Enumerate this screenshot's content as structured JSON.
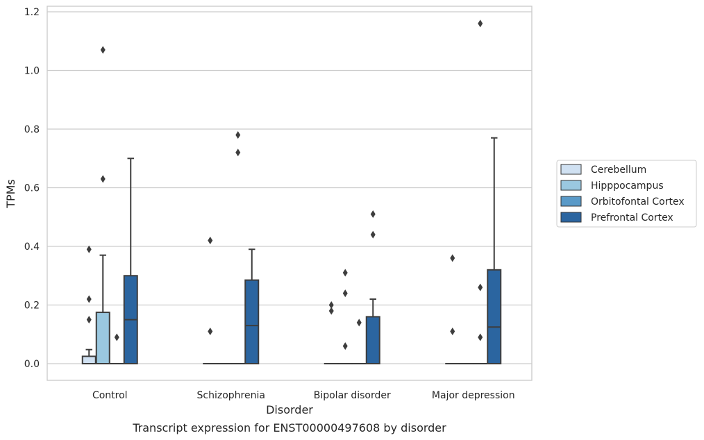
{
  "chart_data": {
    "type": "box",
    "title": "",
    "caption": "Transcript expression for ENST00000497608 by disorder",
    "xlabel": "Disorder",
    "ylabel": "TPMs",
    "ylim": [
      -0.057,
      1.22
    ],
    "yticks": [
      0.0,
      0.2,
      0.4,
      0.6,
      0.8,
      1.0,
      1.2
    ],
    "ytick_labels": [
      "0.0",
      "0.2",
      "0.4",
      "0.6",
      "0.8",
      "1.0",
      "1.2"
    ],
    "grid": "horizontal",
    "legend_position": "outside-right",
    "categories": [
      "Control",
      "Schizophrenia",
      "Bipolar disorder",
      "Major depression"
    ],
    "series": [
      {
        "name": "Cerebellum",
        "color": "#d0e1f2",
        "boxes": [
          {
            "q1": 0.0,
            "median": 0.0,
            "q3": 0.025,
            "whislo": 0.0,
            "whishi": 0.048,
            "fliers": [
              0.39,
              0.22,
              0.15
            ]
          },
          {
            "q1": 0.0,
            "median": 0.0,
            "q3": 0.0,
            "whislo": 0.0,
            "whishi": 0.0,
            "fliers": [
              0.42,
              0.11
            ]
          },
          {
            "q1": 0.0,
            "median": 0.0,
            "q3": 0.0,
            "whislo": 0.0,
            "whishi": 0.0,
            "fliers": [
              0.2,
              0.18
            ]
          },
          {
            "q1": 0.0,
            "median": 0.0,
            "q3": 0.0,
            "whislo": 0.0,
            "whishi": 0.0,
            "fliers": [
              0.36,
              0.11
            ]
          }
        ]
      },
      {
        "name": "Hipppocampus",
        "color": "#9ac8e0",
        "boxes": [
          {
            "q1": 0.0,
            "median": 0.0,
            "q3": 0.175,
            "whislo": 0.0,
            "whishi": 0.37,
            "fliers": [
              1.07,
              0.63
            ]
          },
          {
            "q1": 0.0,
            "median": 0.0,
            "q3": 0.0,
            "whislo": 0.0,
            "whishi": 0.0,
            "fliers": []
          },
          {
            "q1": 0.0,
            "median": 0.0,
            "q3": 0.0,
            "whislo": 0.0,
            "whishi": 0.0,
            "fliers": [
              0.31,
              0.24,
              0.06
            ]
          },
          {
            "q1": 0.0,
            "median": 0.0,
            "q3": 0.0,
            "whislo": 0.0,
            "whishi": 0.0,
            "fliers": []
          }
        ]
      },
      {
        "name": "Orbitofontal Cortex",
        "color": "#5a9ac8",
        "boxes": [
          {
            "q1": 0.0,
            "median": 0.0,
            "q3": 0.0,
            "whislo": 0.0,
            "whishi": 0.0,
            "fliers": [
              0.09
            ]
          },
          {
            "q1": 0.0,
            "median": 0.0,
            "q3": 0.0,
            "whislo": 0.0,
            "whishi": 0.0,
            "fliers": [
              0.72,
              0.78
            ]
          },
          {
            "q1": 0.0,
            "median": 0.0,
            "q3": 0.0,
            "whislo": 0.0,
            "whishi": 0.0,
            "fliers": [
              0.14
            ]
          },
          {
            "q1": 0.0,
            "median": 0.0,
            "q3": 0.0,
            "whislo": 0.0,
            "whishi": 0.0,
            "fliers": [
              0.26,
              0.09,
              1.16
            ]
          }
        ]
      },
      {
        "name": "Prefrontal Cortex",
        "color": "#2b65a0",
        "boxes": [
          {
            "q1": 0.0,
            "median": 0.15,
            "q3": 0.3,
            "whislo": 0.0,
            "whishi": 0.7,
            "fliers": []
          },
          {
            "q1": 0.0,
            "median": 0.13,
            "q3": 0.285,
            "whislo": 0.0,
            "whishi": 0.39,
            "fliers": []
          },
          {
            "q1": 0.0,
            "median": 0.0,
            "q3": 0.16,
            "whislo": 0.0,
            "whishi": 0.22,
            "fliers": [
              0.51,
              0.44
            ]
          },
          {
            "q1": 0.0,
            "median": 0.125,
            "q3": 0.32,
            "whislo": 0.0,
            "whishi": 0.77,
            "fliers": []
          }
        ]
      }
    ]
  }
}
